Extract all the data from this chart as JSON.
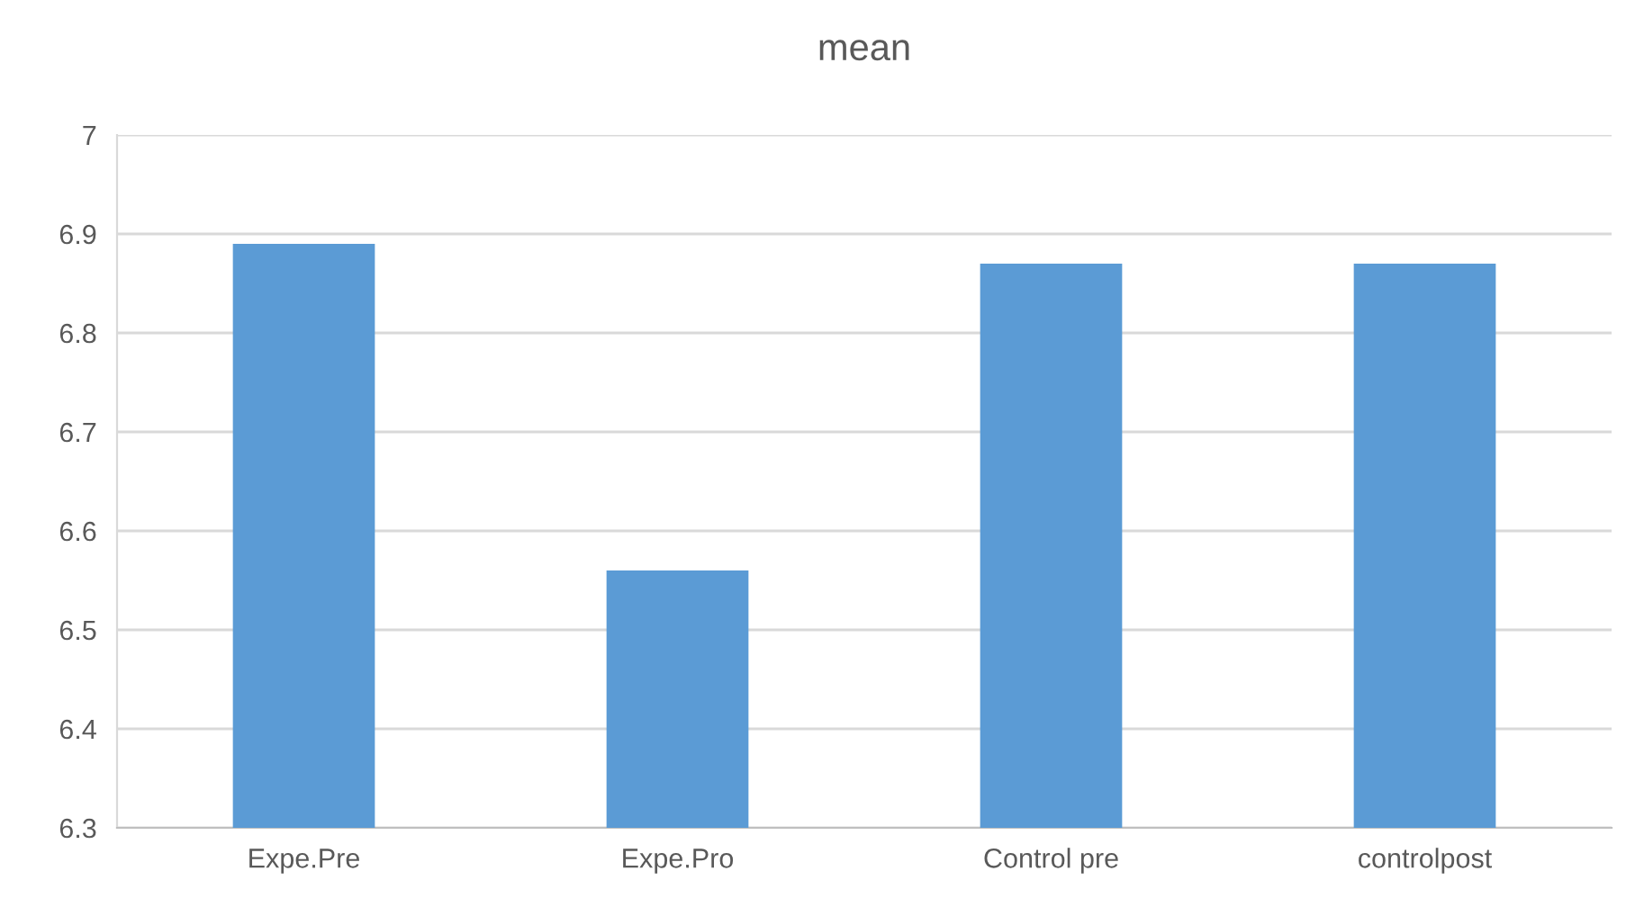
{
  "chart_data": {
    "type": "bar",
    "title": "mean",
    "categories": [
      "Expe.Pre",
      "Expe.Pro",
      "Control pre",
      "controlpost"
    ],
    "values": [
      6.89,
      6.56,
      6.87,
      6.87
    ],
    "color": "#5b9bd5",
    "ylim": [
      6.3,
      7
    ],
    "yticks": [
      6.3,
      6.4,
      6.5,
      6.6,
      6.7,
      6.8,
      6.9,
      7
    ],
    "grid": "y"
  }
}
